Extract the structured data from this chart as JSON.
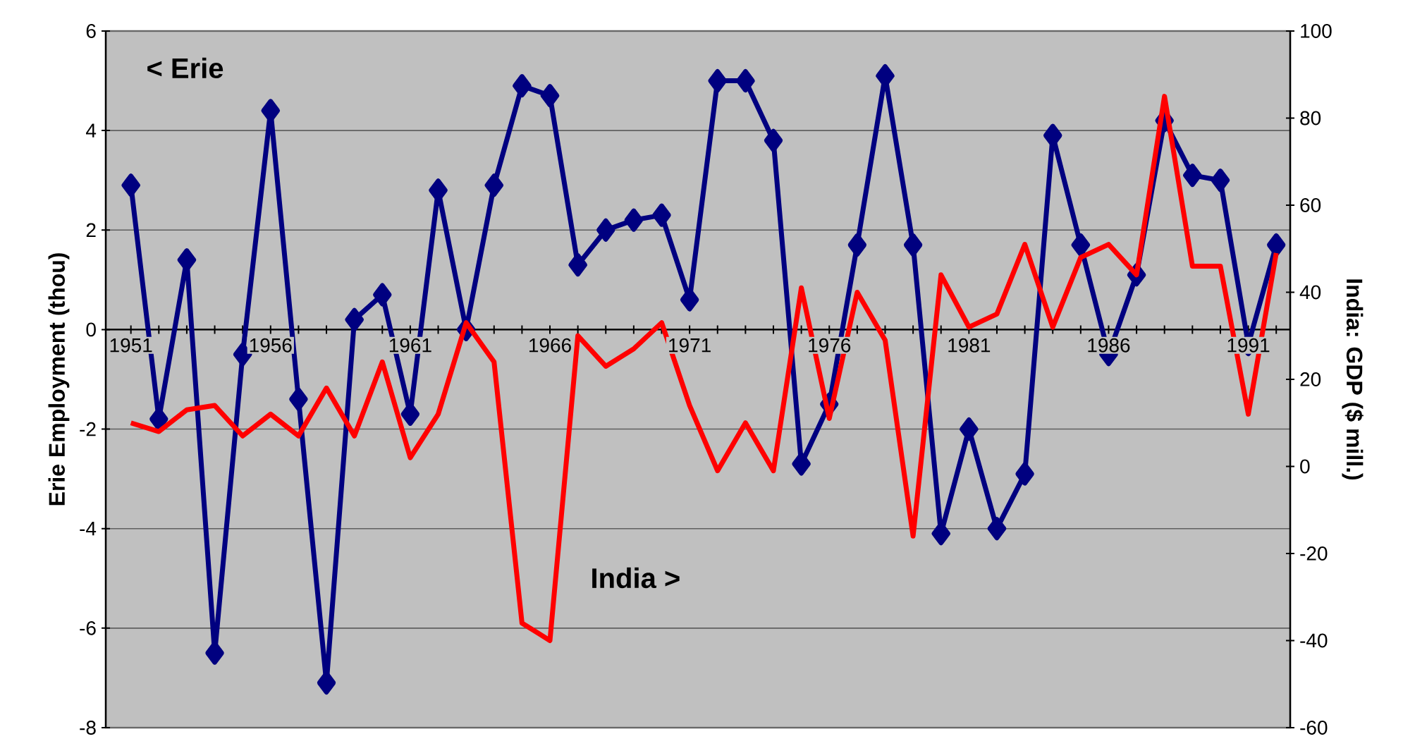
{
  "chart_data": {
    "type": "line",
    "ylabel": "Erie Employment (thou)",
    "y2label": "India: GDP ($ mill.)",
    "annotations": [
      "< Erie",
      "India >"
    ],
    "categories": [
      "1951",
      null,
      null,
      null,
      null,
      "1956",
      null,
      null,
      null,
      null,
      "1961",
      null,
      null,
      null,
      null,
      "1966",
      null,
      null,
      null,
      null,
      "1971",
      null,
      null,
      null,
      null,
      "1976",
      null,
      null,
      null,
      null,
      "1981",
      null,
      null,
      null,
      null,
      "1986",
      null,
      null,
      null,
      null,
      "1991",
      null
    ],
    "series": [
      {
        "color": "#000080",
        "marker": "diamond",
        "values": [
          2.9,
          -1.8,
          1.4,
          -6.5,
          -0.5,
          4.4,
          -1.4,
          -7.1,
          0.2,
          0.7,
          -1.7,
          2.8,
          0,
          2.9,
          4.9,
          4.7,
          1.3,
          2.0,
          2.2,
          2.3,
          0.6,
          5.0,
          5.0,
          3.8,
          -2.7,
          -1.5,
          1.7,
          5.1,
          1.7,
          -4.1,
          -2.0,
          -4.0,
          -2.9,
          3.9,
          1.7,
          -0.5,
          1.1,
          4.2,
          3.1,
          3.0,
          -0.3,
          1.7
        ]
      },
      {
        "color": "#ff0000",
        "marker": "none",
        "axis": "y2",
        "values": [
          10,
          8,
          13,
          14,
          7,
          12,
          7,
          18,
          7,
          24,
          2,
          12,
          33,
          24,
          -36,
          -40,
          30,
          23,
          27,
          33,
          14,
          -1,
          10,
          -1,
          41,
          11,
          40,
          29,
          -16,
          44,
          32,
          35,
          51,
          32,
          48,
          51,
          44,
          85,
          46,
          46,
          12,
          49
        ]
      }
    ],
    "ylim": [
      -8,
      6
    ],
    "yticks": [
      -8,
      -6,
      -4,
      -2,
      0,
      2,
      4,
      6
    ],
    "y2lim": [
      -60,
      100
    ],
    "y2ticks": [
      -60,
      -40,
      -20,
      0,
      20,
      40,
      60,
      80,
      100
    ],
    "grid": "y",
    "line_style": "solid"
  }
}
